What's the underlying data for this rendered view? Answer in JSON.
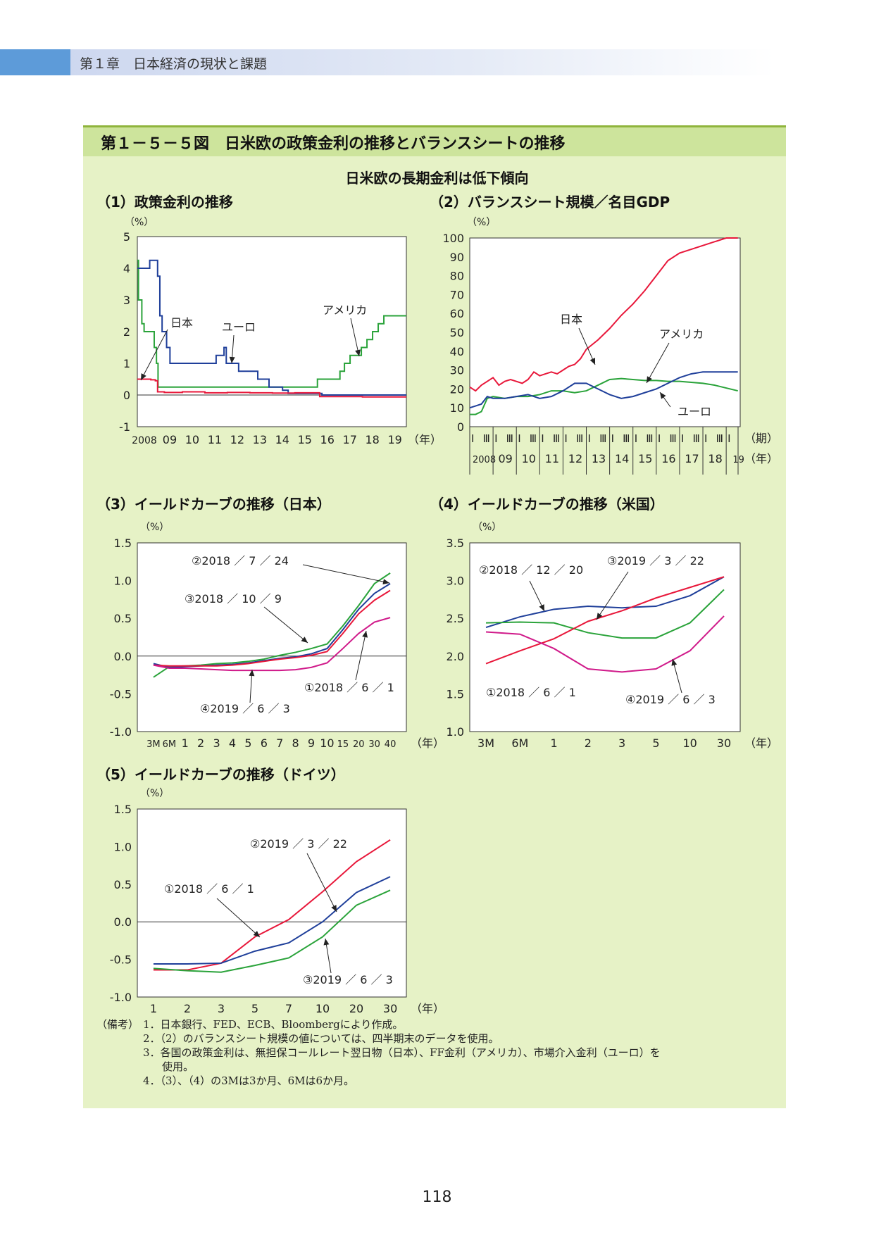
{
  "header": {
    "chapter": "第１章　日本経済の現状と課題"
  },
  "figure": {
    "title": "第１－５－５図　日米欧の政策金利の推移とバランスシートの推移",
    "subtitle": "日米欧の長期金利は低下傾向"
  },
  "chart_data": [
    {
      "id": "c1",
      "type": "line",
      "title": "（1）政策金利の推移",
      "ylabel": "（%）",
      "x_unit": "（年）",
      "ylim": [
        -1,
        5
      ],
      "yticks": [
        "5",
        "4",
        "3",
        "2",
        "1",
        "0",
        "-1"
      ],
      "xticks": [
        "2008",
        "09",
        "10",
        "11",
        "12",
        "13",
        "14",
        "15",
        "16",
        "17",
        "18",
        "19"
      ],
      "xlim": [
        2008,
        2019.95
      ],
      "colors": {
        "日本": "#e8173a",
        "ユーロ": "#1f3f9a",
        "アメリカ": "#2aa33a"
      },
      "labels": [
        "日本",
        "ユーロ",
        "アメリカ"
      ],
      "series": [
        {
          "name": "アメリカ",
          "color": "#2aa33a",
          "x": [
            2008,
            2008.05,
            2008.1,
            2008.2,
            2008.3,
            2008.4,
            2008.55,
            2008.75,
            2008.85,
            2008.92,
            2009,
            2015.95,
            2016,
            2016.95,
            2017,
            2017.2,
            2017.45,
            2017.95,
            2018.2,
            2018.45,
            2018.7,
            2018.95,
            2019.5,
            2019.95
          ],
          "y": [
            4.25,
            3.0,
            3.0,
            2.25,
            2.0,
            2.0,
            2.0,
            1.5,
            1.0,
            0.25,
            0.25,
            0.25,
            0.5,
            0.5,
            0.75,
            1.0,
            1.25,
            1.5,
            1.75,
            2.0,
            2.25,
            2.5,
            2.5,
            2.5
          ]
        },
        {
          "name": "ユーロ",
          "color": "#1f3f9a",
          "x": [
            2008,
            2008.5,
            2008.55,
            2008.8,
            2008.9,
            2009.0,
            2009.1,
            2009.3,
            2009.45,
            2011.3,
            2011.5,
            2011.85,
            2011.95,
            2012.5,
            2013.35,
            2013.85,
            2014.45,
            2014.7,
            2016.2,
            2019.95
          ],
          "y": [
            4.0,
            4.0,
            4.25,
            4.25,
            3.75,
            2.5,
            2.0,
            1.5,
            1.0,
            1.0,
            1.25,
            1.5,
            1.0,
            0.75,
            0.5,
            0.25,
            0.15,
            0.05,
            0.0,
            0.0
          ]
        },
        {
          "name": "日本",
          "color": "#e8173a",
          "x": [
            2008,
            2008.3,
            2008.6,
            2008.8,
            2008.9,
            2009.2,
            2010,
            2011,
            2012,
            2013,
            2014,
            2015,
            2016.1,
            2016.5,
            2017,
            2018,
            2019,
            2019.95
          ],
          "y": [
            0.5,
            0.5,
            0.48,
            0.45,
            0.1,
            0.08,
            0.1,
            0.07,
            0.08,
            0.07,
            0.06,
            0.07,
            -0.05,
            -0.05,
            -0.05,
            -0.06,
            -0.06,
            -0.06
          ]
        }
      ]
    },
    {
      "id": "c2",
      "type": "line",
      "title": "（2）バランスシート規模／名目GDP",
      "ylabel": "（%）",
      "ylim": [
        0,
        100
      ],
      "yticks": [
        "100",
        "90",
        "80",
        "70",
        "60",
        "50",
        "40",
        "30",
        "20",
        "10",
        "0"
      ],
      "xticks": [
        "2008",
        "09",
        "10",
        "11",
        "12",
        "13",
        "14",
        "15",
        "16",
        "17",
        "18",
        "19"
      ],
      "period_labels": [
        "Ⅰ",
        "Ⅲ"
      ],
      "period_unit": "（期）",
      "x_unit": "（年）",
      "xlim": [
        2008,
        2019.6
      ],
      "labels": [
        "日本",
        "アメリカ",
        "ユーロ"
      ],
      "series": [
        {
          "name": "日本",
          "color": "#e8173a",
          "x": [
            2008,
            2008.25,
            2008.5,
            2008.75,
            2009,
            2009.25,
            2009.5,
            2009.75,
            2010,
            2010.25,
            2010.5,
            2010.75,
            2011,
            2011.25,
            2011.5,
            2011.75,
            2012,
            2012.25,
            2012.5,
            2012.75,
            2013,
            2013.5,
            2014,
            2014.5,
            2015,
            2015.5,
            2016,
            2016.5,
            2017,
            2017.5,
            2018,
            2018.5,
            2019,
            2019.5
          ],
          "y": [
            21,
            19,
            22,
            24,
            26,
            22,
            24,
            25,
            24,
            23,
            25,
            29,
            27,
            28,
            29,
            28,
            30,
            32,
            33,
            36,
            41,
            46,
            52,
            59,
            65,
            72,
            80,
            88,
            92,
            94,
            96,
            98,
            100,
            100
          ]
        },
        {
          "name": "アメリカ",
          "color": "#2aa33a",
          "x": [
            2008,
            2008.25,
            2008.5,
            2008.75,
            2009,
            2009.5,
            2010,
            2010.5,
            2011,
            2011.5,
            2012,
            2012.5,
            2013,
            2013.5,
            2014,
            2014.5,
            2015,
            2015.5,
            2016,
            2016.5,
            2017,
            2017.5,
            2018,
            2018.5,
            2019,
            2019.5
          ],
          "y": [
            6.5,
            6.5,
            8,
            15,
            16,
            15,
            16,
            16,
            17,
            19,
            19,
            18,
            19,
            22,
            25,
            25.5,
            25,
            24.5,
            24.5,
            24,
            24,
            23.5,
            23,
            22,
            20.5,
            19
          ]
        },
        {
          "name": "ユーロ",
          "color": "#1f3f9a",
          "x": [
            2008,
            2008.25,
            2008.5,
            2008.75,
            2009,
            2009.5,
            2010,
            2010.5,
            2011,
            2011.5,
            2012,
            2012.5,
            2013,
            2013.5,
            2014,
            2014.5,
            2015,
            2015.5,
            2016,
            2016.5,
            2017,
            2017.5,
            2018,
            2018.5,
            2019,
            2019.5
          ],
          "y": [
            10,
            11,
            12,
            16,
            15,
            15,
            16,
            17,
            15,
            16,
            19,
            23,
            23,
            20,
            17,
            15,
            16,
            18,
            20,
            23,
            26,
            28,
            29,
            29,
            29,
            29
          ]
        }
      ]
    },
    {
      "id": "c3",
      "type": "line",
      "title": "（3）イールドカーブの推移（日本）",
      "ylabel": "（%）",
      "x_unit": "（年）",
      "ylim": [
        -1.0,
        1.5
      ],
      "yticks": [
        "1.5",
        "1.0",
        "0.5",
        "0.0",
        "-0.5",
        "-1.0"
      ],
      "categories": [
        "3M",
        "6M",
        "1",
        "2",
        "3",
        "4",
        "5",
        "6",
        "7",
        "8",
        "9",
        "10",
        "15",
        "20",
        "30",
        "40"
      ],
      "labels": [
        "②2018 ／ 7 ／ 24",
        "③2018 ／ 10 ／ 9",
        "①2018 ／ 6 ／ 1",
        "④2019 ／ 6 ／ 3"
      ],
      "series": [
        {
          "name": "②2018 ／ 7 ／ 24",
          "color": "#2aa33a",
          "values": [
            -0.28,
            -0.14,
            -0.13,
            -0.12,
            -0.1,
            -0.09,
            -0.07,
            -0.04,
            0.01,
            0.05,
            0.1,
            0.16,
            0.4,
            0.67,
            0.96,
            1.1
          ]
        },
        {
          "name": "③2018 ／ 10 ／ 9",
          "color": "#1f3f9a",
          "values": [
            -0.1,
            -0.15,
            -0.14,
            -0.13,
            -0.12,
            -0.11,
            -0.09,
            -0.06,
            -0.03,
            -0.01,
            0.03,
            0.1,
            0.35,
            0.62,
            0.83,
            0.96
          ]
        },
        {
          "name": "①2018 ／ 6 ／ 1",
          "color": "#e8173a",
          "values": [
            -0.12,
            -0.13,
            -0.13,
            -0.13,
            -0.13,
            -0.12,
            -0.1,
            -0.07,
            -0.04,
            -0.02,
            0.01,
            0.06,
            0.3,
            0.56,
            0.74,
            0.87
          ]
        },
        {
          "name": "④2019 ／ 6 ／ 3",
          "color": "#d01a8a",
          "values": [
            -0.12,
            -0.16,
            -0.16,
            -0.17,
            -0.18,
            -0.19,
            -0.19,
            -0.19,
            -0.19,
            -0.18,
            -0.15,
            -0.09,
            0.1,
            0.3,
            0.45,
            0.51
          ]
        }
      ]
    },
    {
      "id": "c4",
      "type": "line",
      "title": "（4）イールドカーブの推移（米国）",
      "ylabel": "（%）",
      "x_unit": "（年）",
      "ylim": [
        1.0,
        3.5
      ],
      "yticks": [
        "3.5",
        "3.0",
        "2.5",
        "2.0",
        "1.5",
        "1.0"
      ],
      "categories": [
        "3M",
        "6M",
        "1",
        "2",
        "3",
        "5",
        "10",
        "30"
      ],
      "labels": [
        "②2018 ／ 12 ／ 20",
        "③2019 ／ 3 ／ 22",
        "①2018 ／ 6 ／ 1",
        "④2019 ／ 6 ／ 3"
      ],
      "series": [
        {
          "name": "②2018 ／ 12 ／ 20",
          "color": "#1f3f9a",
          "values": [
            2.38,
            2.52,
            2.62,
            2.66,
            2.64,
            2.66,
            2.8,
            3.05
          ]
        },
        {
          "name": "③2019 ／ 3 ／ 22",
          "color": "#2aa33a",
          "values": [
            2.44,
            2.45,
            2.44,
            2.31,
            2.24,
            2.24,
            2.44,
            2.88
          ]
        },
        {
          "name": "①2018 ／ 6 ／ 1",
          "color": "#e8173a",
          "values": [
            1.9,
            2.07,
            2.23,
            2.46,
            2.6,
            2.77,
            2.91,
            3.05
          ]
        },
        {
          "name": "④2019 ／ 6 ／ 3",
          "color": "#d01a8a",
          "values": [
            2.32,
            2.29,
            2.1,
            1.83,
            1.79,
            1.83,
            2.07,
            2.53
          ]
        }
      ]
    },
    {
      "id": "c5",
      "type": "line",
      "title": "（5）イールドカーブの推移（ドイツ）",
      "ylabel": "（%）",
      "x_unit": "（年）",
      "ylim": [
        -1.0,
        1.5
      ],
      "yticks": [
        "1.5",
        "1.0",
        "0.5",
        "0.0",
        "-0.5",
        "-1.0"
      ],
      "categories": [
        "1",
        "2",
        "3",
        "5",
        "7",
        "10",
        "20",
        "30"
      ],
      "labels": [
        "②2019 ／ 3 ／ 22",
        "①2018 ／ 6 ／ 1",
        "③2019 ／ 6 ／ 3"
      ],
      "series": [
        {
          "name": "①2018 ／ 6 ／ 1",
          "color": "#e8173a",
          "values": [
            -0.64,
            -0.64,
            -0.55,
            -0.2,
            0.03,
            0.4,
            0.8,
            1.09
          ]
        },
        {
          "name": "②2019 ／ 3 ／ 22",
          "color": "#1f3f9a",
          "values": [
            -0.56,
            -0.56,
            -0.55,
            -0.39,
            -0.28,
            0.0,
            0.39,
            0.6
          ]
        },
        {
          "name": "③2019 ／ 6 ／ 3",
          "color": "#2aa33a",
          "values": [
            -0.62,
            -0.65,
            -0.67,
            -0.58,
            -0.48,
            -0.2,
            0.22,
            0.42
          ]
        }
      ]
    }
  ],
  "notes": {
    "label": "（備考）",
    "items": [
      "1．日本銀行、FED、ECB、Bloombergにより作成。",
      "2．（2）のバランスシート規模の値については、四半期末のデータを使用。",
      "3．各国の政策金利は、無担保コールレート翌日物（日本）、FF金利（アメリカ）、市場介入金利（ユーロ）を",
      "使用。",
      "4．（3）、（4）の3Mは3か月、6Mは6か月。"
    ]
  },
  "page_number": "118"
}
